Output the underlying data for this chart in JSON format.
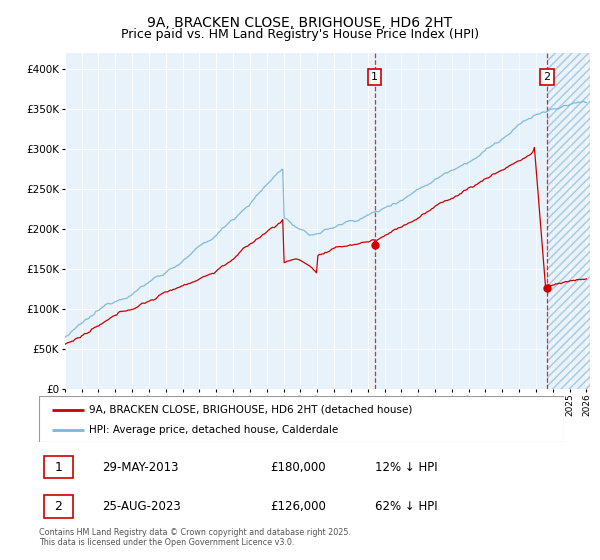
{
  "title": "9A, BRACKEN CLOSE, BRIGHOUSE, HD6 2HT",
  "subtitle": "Price paid vs. HM Land Registry's House Price Index (HPI)",
  "ylim": [
    0,
    420000
  ],
  "yticks": [
    0,
    50000,
    100000,
    150000,
    200000,
    250000,
    300000,
    350000,
    400000
  ],
  "ytick_labels": [
    "£0",
    "£50K",
    "£100K",
    "£150K",
    "£200K",
    "£250K",
    "£300K",
    "£350K",
    "£400K"
  ],
  "x_start_year": 1995,
  "x_end_year": 2026,
  "hpi_color": "#7ab8d9",
  "price_color": "#cc0000",
  "marker1_yr": 2013.42,
  "marker2_yr": 2023.65,
  "marker1_price_val": 180000,
  "marker2_price_val": 126000,
  "marker1_text": "29-MAY-2013",
  "marker1_price": "£180,000",
  "marker1_hpi": "12% ↓ HPI",
  "marker2_text": "25-AUG-2023",
  "marker2_price": "£126,000",
  "marker2_hpi": "62% ↓ HPI",
  "legend_line1": "9A, BRACKEN CLOSE, BRIGHOUSE, HD6 2HT (detached house)",
  "legend_line2": "HPI: Average price, detached house, Calderdale",
  "footnote": "Contains HM Land Registry data © Crown copyright and database right 2025.\nThis data is licensed under the Open Government Licence v3.0.",
  "bg_color": "#e8f2fa",
  "hatch_color": "#a8c8e0",
  "grid_color": "#ffffff",
  "title_fontsize": 10,
  "subtitle_fontsize": 9
}
